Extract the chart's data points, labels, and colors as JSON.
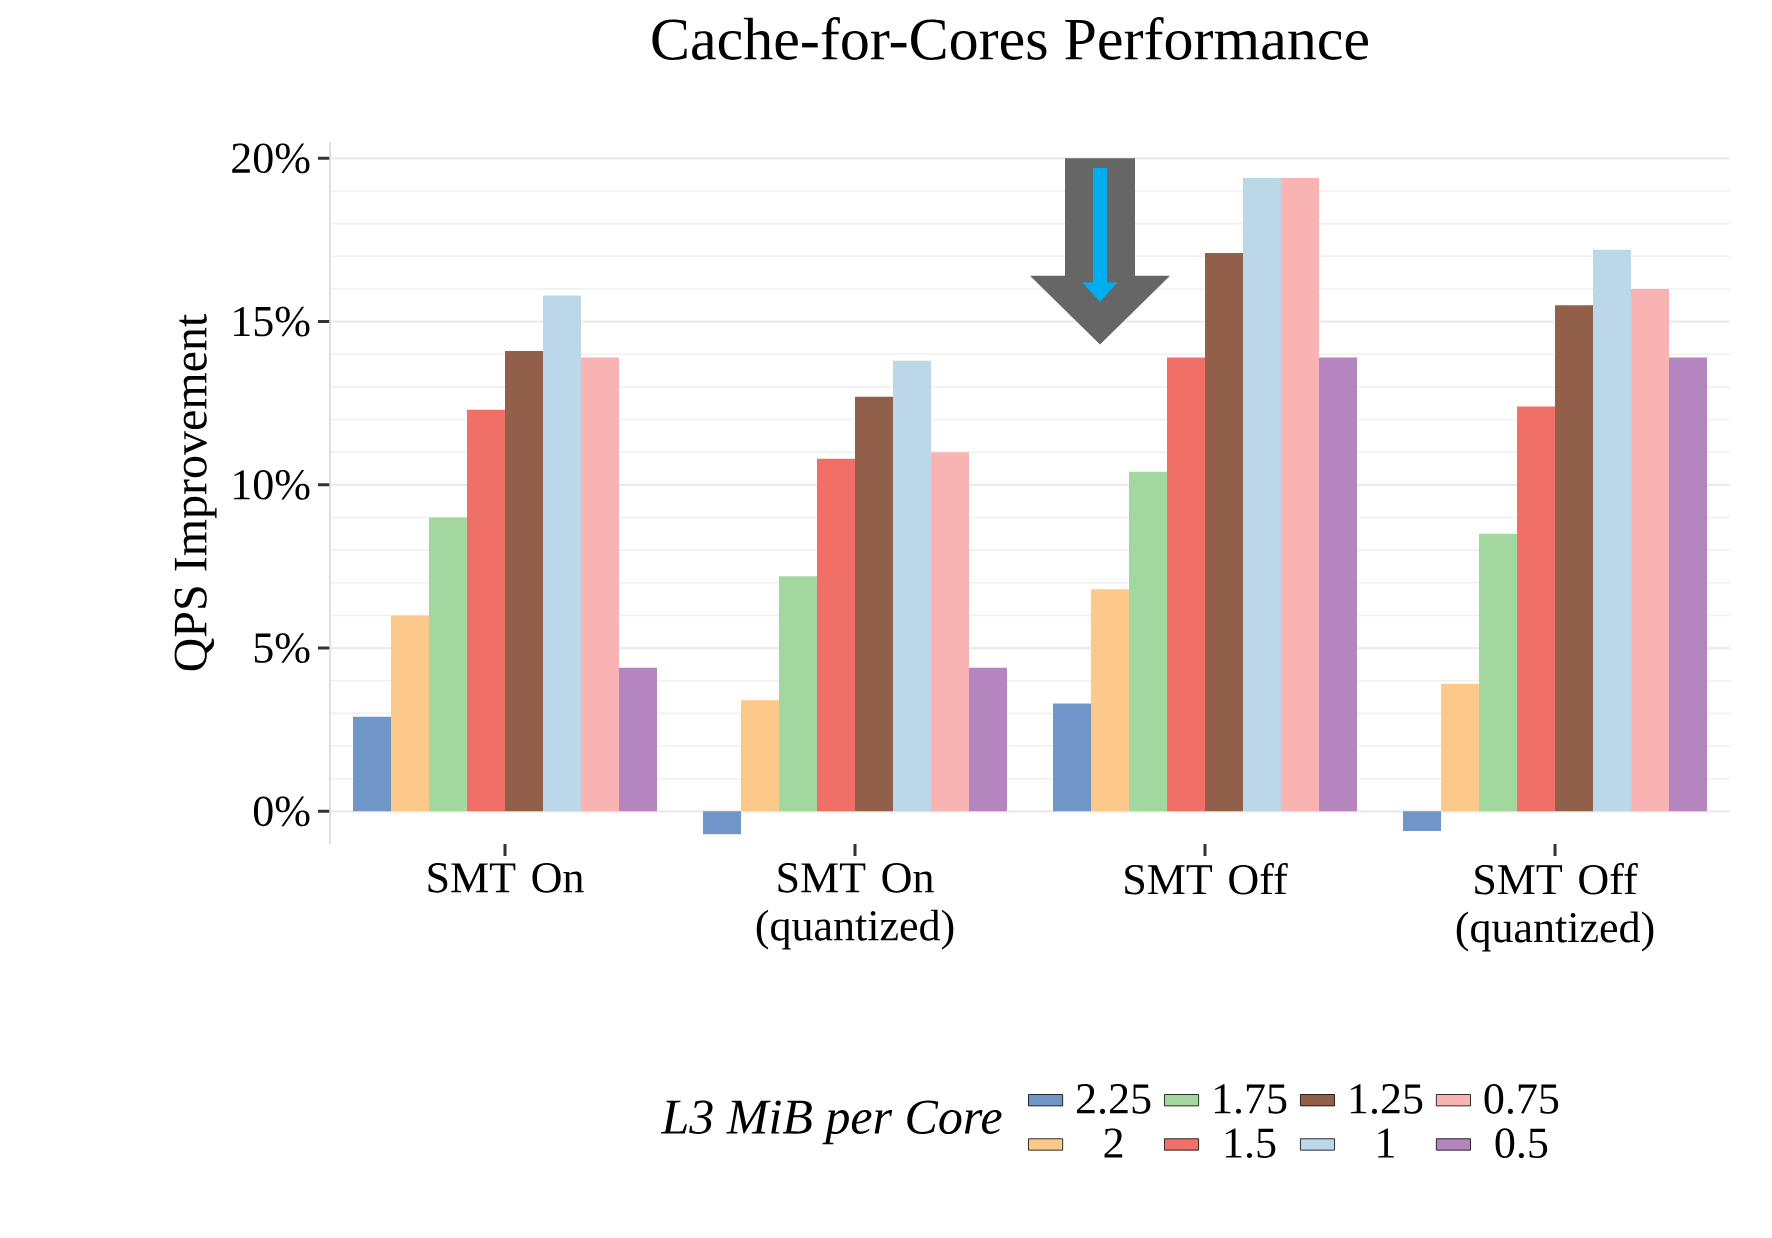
{
  "chart_data": {
    "type": "bar",
    "title": "Cache-for-Cores Performance",
    "ylabel": "QPS Improvement",
    "legend_title": "L3 MiB per Core",
    "categories": [
      "SMT On",
      "SMT On (quantized)",
      "SMT Off",
      "SMT Off (quantized)"
    ],
    "series": [
      {
        "name": "2.25",
        "color": "#7096c8",
        "values": [
          2.9,
          -0.7,
          3.3,
          -0.6
        ]
      },
      {
        "name": "2",
        "color": "#fdc98a",
        "values": [
          6.0,
          3.4,
          6.8,
          3.9
        ]
      },
      {
        "name": "1.75",
        "color": "#a2d7a0",
        "values": [
          9.0,
          7.2,
          10.4,
          8.5
        ]
      },
      {
        "name": "1.5",
        "color": "#f07068",
        "values": [
          12.3,
          10.8,
          13.9,
          12.4
        ]
      },
      {
        "name": "1.25",
        "color": "#925f4b",
        "values": [
          14.1,
          12.7,
          17.1,
          15.5
        ]
      },
      {
        "name": "1",
        "color": "#bcd8e8",
        "values": [
          15.8,
          13.8,
          19.4,
          17.2
        ]
      },
      {
        "name": "0.75",
        "color": "#fab3b3",
        "values": [
          13.9,
          11.0,
          19.4,
          16.0
        ]
      },
      {
        "name": "0.5",
        "color": "#b585bf",
        "values": [
          4.4,
          4.4,
          13.9,
          13.9
        ]
      }
    ],
    "ylim": [
      -1,
      20.5
    ],
    "yticks": [
      {
        "value": 0,
        "label": "0%"
      },
      {
        "value": 5,
        "label": "5%"
      },
      {
        "value": 10,
        "label": "10%"
      },
      {
        "value": 15,
        "label": "15%"
      },
      {
        "value": 20,
        "label": "20%"
      }
    ],
    "grid": "y",
    "legend": "bottom"
  }
}
